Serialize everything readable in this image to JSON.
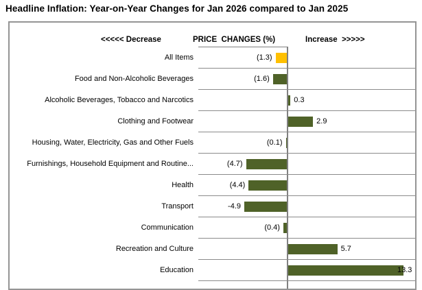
{
  "title": "Headline Inflation: Year-on-Year Changes for Jan 2026 compared to Jan 2025",
  "header": {
    "decrease": "<<<<< Decrease",
    "center": "PRICE  CHANGES (%)",
    "increase": "Increase  >>>>>"
  },
  "colors": {
    "bar_default": "#4F6228",
    "bar_highlight": "#FFC000",
    "grid_line": "#808080"
  },
  "chart_data": {
    "type": "bar",
    "orientation": "horizontal",
    "title": "Headline Inflation: Year-on-Year Changes for Jan 2026 compared to Jan 2025",
    "xlabel": "PRICE CHANGES (%)",
    "axis_range": [
      -10,
      15
    ],
    "grid": "row-separators-only",
    "legend": "none",
    "categories": [
      "All Items",
      "Food and Non-Alcoholic Beverages",
      "Alcoholic Beverages, Tobacco and Narcotics",
      "Clothing and Footwear",
      "Housing, Water, Electricity, Gas and Other Fuels",
      "Furnishings, Household Equipment and Routine...",
      "Health",
      "Transport",
      "Communication",
      "Recreation and Culture",
      "Education"
    ],
    "values": [
      -1.3,
      -1.6,
      0.3,
      2.9,
      -0.1,
      -4.7,
      -4.4,
      -4.9,
      -0.4,
      5.7,
      13.3
    ],
    "value_labels": [
      "(1.3)",
      "(1.6)",
      "0.3",
      "2.9",
      "(0.1)",
      "(4.7)",
      "(4.4)",
      "-4.9",
      "(0.4)",
      "5.7",
      "13.3"
    ],
    "bar_colors": [
      "#FFC000",
      "#4F6228",
      "#4F6228",
      "#4F6228",
      "#4F6228",
      "#4F6228",
      "#4F6228",
      "#4F6228",
      "#4F6228",
      "#4F6228",
      "#4F6228"
    ]
  }
}
